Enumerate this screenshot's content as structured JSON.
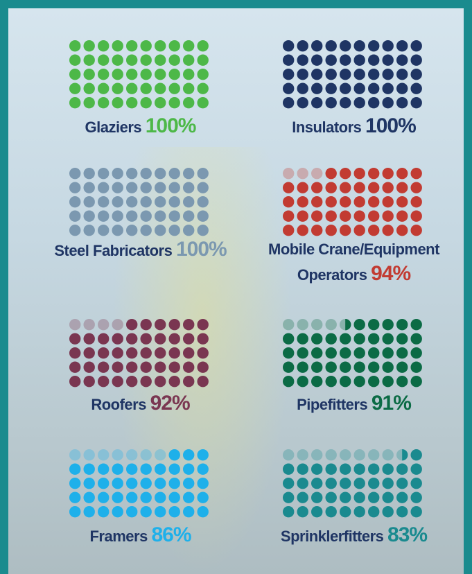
{
  "chart_data": [
    {
      "type": "waffle",
      "categories": [
        "Glaziers"
      ],
      "values": [
        100
      ],
      "value_labels": [
        "100%"
      ],
      "color": "#4db848"
    },
    {
      "type": "waffle",
      "categories": [
        "Insulators"
      ],
      "values": [
        100
      ],
      "value_labels": [
        "100%"
      ],
      "color": "#1f3564"
    },
    {
      "type": "waffle",
      "categories": [
        "Steel Fabricators"
      ],
      "values": [
        100
      ],
      "value_labels": [
        "100%"
      ],
      "color": "#7b98b0"
    },
    {
      "type": "waffle",
      "categories": [
        "Mobile Crane/Equipment Operators"
      ],
      "values": [
        94
      ],
      "value_labels": [
        "94%"
      ],
      "color": "#c23b32"
    },
    {
      "type": "waffle",
      "categories": [
        "Roofers"
      ],
      "values": [
        92
      ],
      "value_labels": [
        "92%"
      ],
      "color": "#7a3651"
    },
    {
      "type": "waffle",
      "categories": [
        "Pipefitters"
      ],
      "values": [
        91
      ],
      "value_labels": [
        "91%"
      ],
      "color": "#0b6b45"
    },
    {
      "type": "waffle",
      "categories": [
        "Framers"
      ],
      "values": [
        86
      ],
      "value_labels": [
        "86%"
      ],
      "color": "#1eb0ea"
    },
    {
      "type": "waffle",
      "categories": [
        "Sprinklerfitters"
      ],
      "values": [
        83
      ],
      "value_labels": [
        "83%"
      ],
      "color": "#1a8a8f"
    }
  ]
}
